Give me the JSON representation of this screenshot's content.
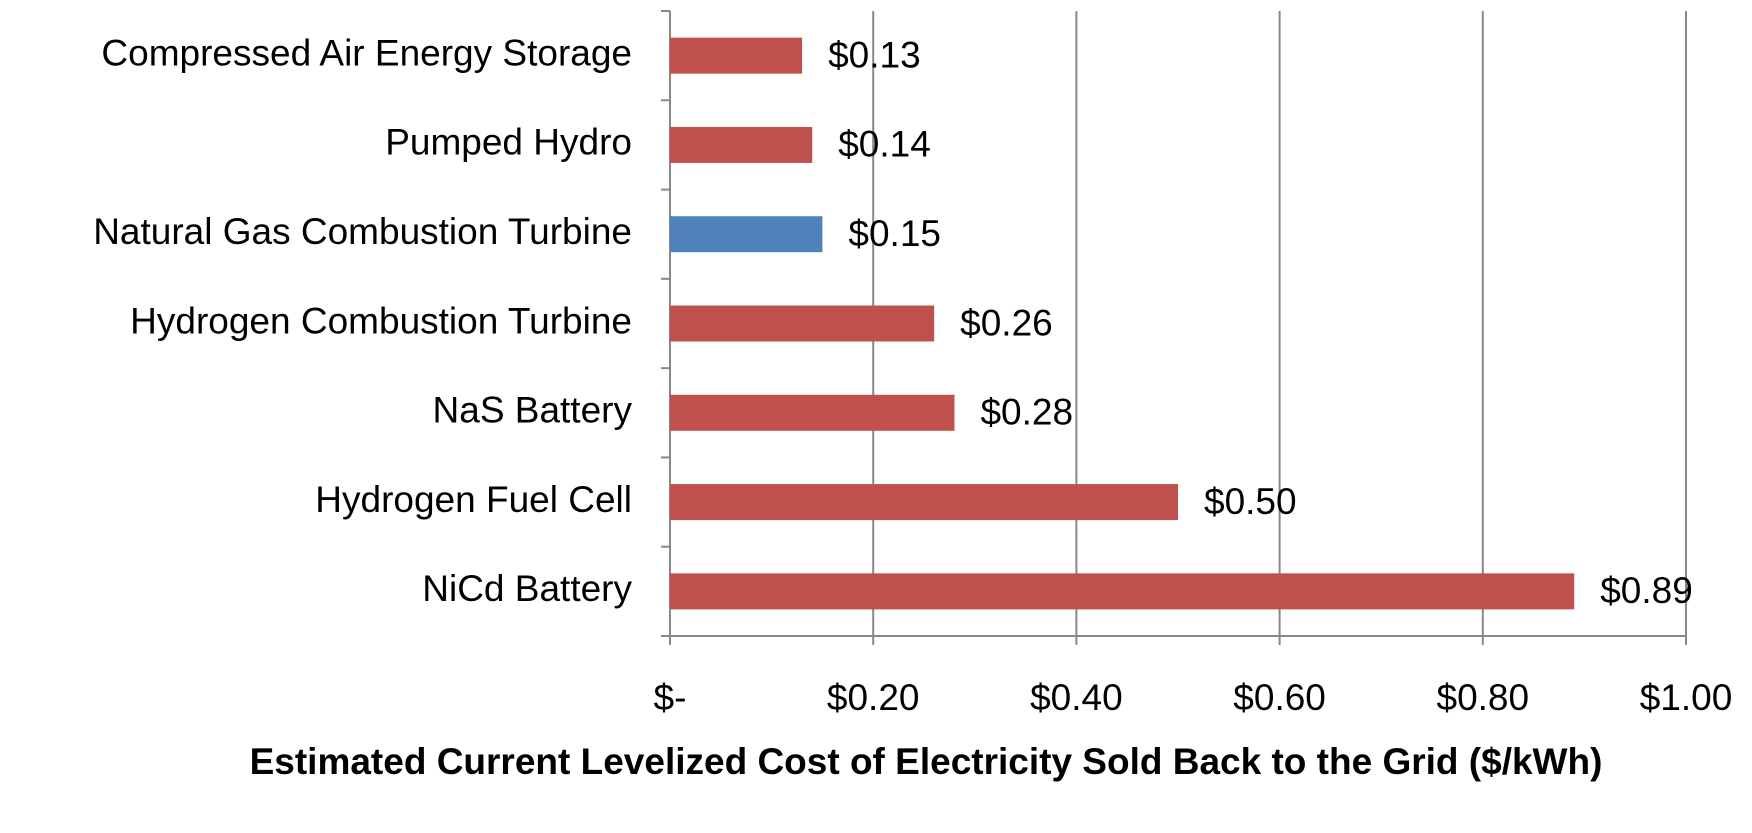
{
  "chart_data": {
    "type": "bar",
    "orientation": "horizontal",
    "categories": [
      "Compressed Air Energy Storage",
      "Pumped Hydro",
      "Natural Gas Combustion Turbine",
      "Hydrogen Combustion Turbine",
      "NaS Battery",
      "Hydrogen Fuel Cell",
      "NiCd Battery"
    ],
    "values": [
      0.13,
      0.14,
      0.15,
      0.26,
      0.28,
      0.5,
      0.89
    ],
    "value_labels": [
      "$0.13",
      "$0.14",
      "$0.15",
      "$0.26",
      "$0.28",
      "$0.50",
      "$0.89"
    ],
    "colors": [
      "#c0504d",
      "#c0504d",
      "#4f81bd",
      "#c0504d",
      "#c0504d",
      "#c0504d",
      "#c0504d"
    ],
    "xlim": [
      0,
      1.0
    ],
    "xticks": [
      {
        "value": 0,
        "label": "$-"
      },
      {
        "value": 0.2,
        "label": "$0.20"
      },
      {
        "value": 0.4,
        "label": "$0.40"
      },
      {
        "value": 0.6,
        "label": "$0.60"
      },
      {
        "value": 0.8,
        "label": "$0.80"
      },
      {
        "value": 1.0,
        "label": "$1.00"
      }
    ],
    "xlabel": "Estimated Current Levelized Cost of Electricity Sold Back to the Grid ($/kWh)",
    "grid": true
  }
}
